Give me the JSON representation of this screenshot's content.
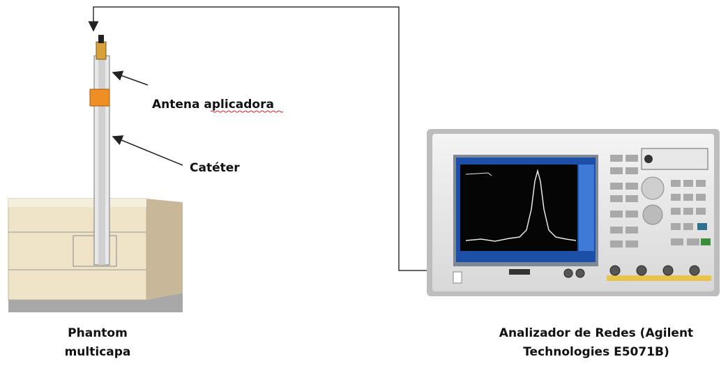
{
  "nodes": [
    {
      "label": "Antena aplicadora"
    },
    {
      "label": "Catéter"
    },
    {
      "label": [
        "Phantom",
        "multicapa"
      ]
    },
    {
      "label": [
        "Analizador de Redes (Agilent",
        "Technologies E5071B)"
      ]
    }
  ]
}
